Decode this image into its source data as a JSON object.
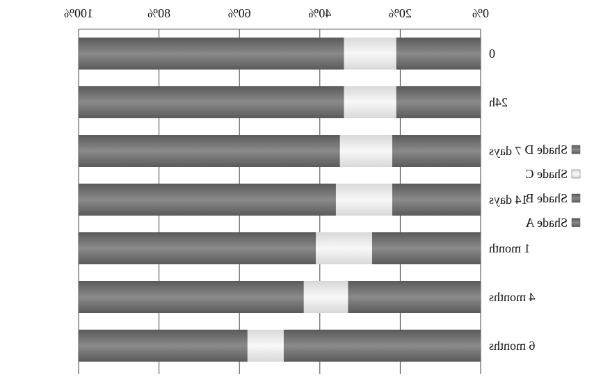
{
  "chart_data": {
    "type": "bar",
    "orientation": "horizontal",
    "stacked": "percent",
    "mirrored": true,
    "categories": [
      "0",
      "24h",
      "7 days",
      "14 days",
      "1 month",
      "4 months",
      "6 months"
    ],
    "series": [
      {
        "name": "Shade A",
        "values": [
          21,
          21,
          22,
          22,
          27,
          33,
          49
        ]
      },
      {
        "name": "Shade B",
        "values": [
          0,
          0,
          0,
          0,
          0,
          0,
          0
        ]
      },
      {
        "name": "Shade C",
        "values": [
          13,
          13,
          13,
          14,
          14,
          11,
          9
        ]
      },
      {
        "name": "Shade D",
        "values": [
          66,
          66,
          65,
          64,
          59,
          56,
          42
        ]
      }
    ],
    "xlim": [
      0,
      100
    ],
    "x_ticks": [
      "0%",
      "20%",
      "40%",
      "60%",
      "80%",
      "100%"
    ],
    "grid": true,
    "legend_position": "right",
    "colors": {
      "Shade A": "#6e6e6e",
      "Shade B": "#5e5e5e",
      "Shade C": "#e8e8e8",
      "Shade D": "#7c7c7c"
    }
  }
}
